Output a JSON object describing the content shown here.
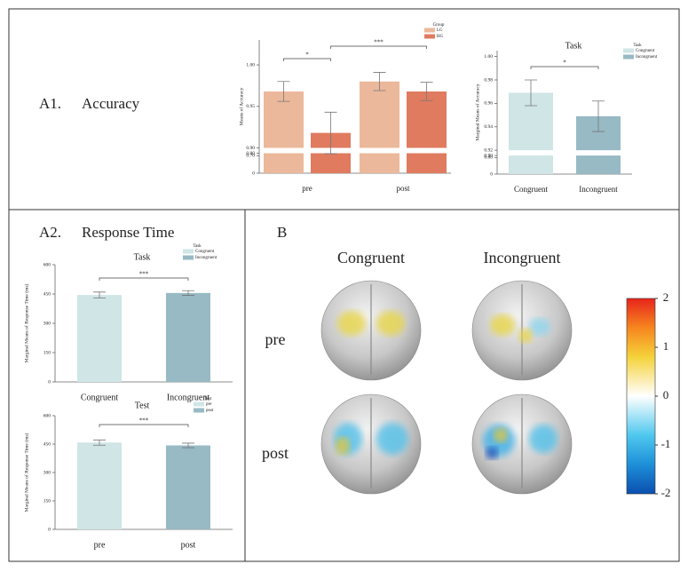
{
  "panels": {
    "a1_label": "A1.",
    "a1_title": "Accuracy",
    "a2_label": "A2.",
    "a2_title": "Response Time",
    "b_label": "B"
  },
  "chart_data": [
    {
      "type": "bar",
      "ylabel": "Means of Accuracy",
      "legend_title": "Group",
      "categories": [
        "pre",
        "post"
      ],
      "series": [
        {
          "name": "LG",
          "color": "#ebb89b",
          "values": [
            0.968,
            0.98
          ],
          "errors": [
            0.012,
            0.011
          ]
        },
        {
          "name": "HG",
          "color": "#e07b5f",
          "values": [
            0.918,
            0.968
          ],
          "errors": [
            0.025,
            0.011
          ]
        }
      ],
      "ylim": [
        0,
        1.03
      ],
      "axis_break": [
        0.8,
        0.9
      ],
      "yticks": [
        0,
        {
          "value": 0.7,
          "label": "0.70"
        },
        {
          "value": 0.8,
          "label": "0.80"
        },
        {
          "value": 0.9,
          "label": "0.90"
        },
        {
          "value": 0.95,
          "label": "0.95"
        },
        {
          "value": 1,
          "label": "1.00"
        }
      ],
      "annotations": [
        "*",
        "***"
      ]
    },
    {
      "type": "bar",
      "title": "Task",
      "ylabel": "Marginal Means of Accuracy",
      "legend_title": "Task",
      "categories": [
        "Congruent",
        "Incongruent"
      ],
      "values": [
        0.969,
        0.949
      ],
      "errors": [
        0.011,
        0.013
      ],
      "colors": [
        "#cfe5e6",
        "#97bac4"
      ],
      "ylim": [
        0,
        1.005
      ],
      "axis_break": [
        0.9,
        0.92
      ],
      "yticks": [
        0,
        {
          "value": 0.8,
          "label": "0.80"
        },
        {
          "value": 0.9,
          "label": "0.90"
        },
        {
          "value": 0.92,
          "label": "0.92"
        },
        {
          "value": 0.94,
          "label": "0.94"
        },
        {
          "value": 0.96,
          "label": "0.96"
        },
        {
          "value": 0.98,
          "label": "0.98"
        },
        {
          "value": 1,
          "label": "1.00"
        }
      ],
      "annotations": [
        "*"
      ]
    },
    {
      "type": "bar",
      "title": "Task",
      "ylabel": "Marginal Means of Response Time (ms)",
      "legend_title": "Task",
      "categories": [
        "Congruent",
        "Incongruent"
      ],
      "values": [
        445,
        455
      ],
      "errors": [
        15,
        12
      ],
      "colors": [
        "#cfe5e6",
        "#97bac4"
      ],
      "ylim": [
        0,
        600
      ],
      "yticks": [
        0,
        150,
        300,
        450,
        600
      ],
      "annotations": [
        "***"
      ]
    },
    {
      "type": "bar",
      "title": "Test",
      "ylabel": "Marginal Means of Response Time (ms)",
      "legend_title": "Test",
      "categories": [
        "pre",
        "post"
      ],
      "values": [
        458,
        443
      ],
      "errors": [
        14,
        12
      ],
      "colors": [
        "#cfe5e6",
        "#97bac4"
      ],
      "ylim": [
        0,
        600
      ],
      "yticks": [
        0,
        150,
        300,
        450,
        600
      ],
      "annotations": [
        "***"
      ]
    }
  ],
  "brain": {
    "columns": [
      "Congruent",
      "Incongruent"
    ],
    "rows": [
      "pre",
      "post"
    ],
    "clim": [
      -2,
      2
    ],
    "colorbar_ticks": [
      2,
      1,
      0,
      -1,
      -2
    ]
  }
}
